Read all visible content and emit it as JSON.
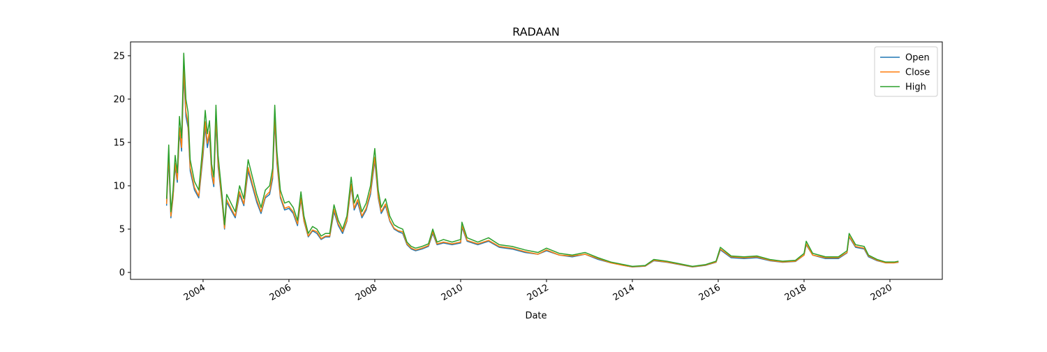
{
  "chart_data": {
    "type": "line",
    "title": "RADAAN",
    "xlabel": "Date",
    "x": [
      2003.15,
      2003.2,
      2003.25,
      2003.3,
      2003.35,
      2003.4,
      2003.45,
      2003.5,
      2003.55,
      2003.6,
      2003.65,
      2003.7,
      2003.8,
      2003.9,
      2004.0,
      2004.05,
      2004.1,
      2004.15,
      2004.2,
      2004.25,
      2004.3,
      2004.35,
      2004.45,
      2004.5,
      2004.55,
      2004.65,
      2004.75,
      2004.85,
      2004.95,
      2005.05,
      2005.15,
      2005.25,
      2005.35,
      2005.45,
      2005.55,
      2005.62,
      2005.67,
      2005.72,
      2005.8,
      2005.9,
      2006.0,
      2006.1,
      2006.2,
      2006.28,
      2006.35,
      2006.45,
      2006.55,
      2006.65,
      2006.75,
      2006.85,
      2006.95,
      2007.05,
      2007.15,
      2007.25,
      2007.35,
      2007.45,
      2007.52,
      2007.6,
      2007.7,
      2007.8,
      2007.9,
      2008.0,
      2008.08,
      2008.15,
      2008.25,
      2008.35,
      2008.45,
      2008.55,
      2008.65,
      2008.75,
      2008.85,
      2008.95,
      2009.1,
      2009.25,
      2009.35,
      2009.45,
      2009.6,
      2009.8,
      2010.0,
      2010.03,
      2010.15,
      2010.4,
      2010.65,
      2010.9,
      2011.2,
      2011.5,
      2011.8,
      2012.0,
      2012.3,
      2012.6,
      2012.9,
      2013.2,
      2013.5,
      2013.8,
      2014.0,
      2014.3,
      2014.5,
      2014.8,
      2015.1,
      2015.4,
      2015.7,
      2015.95,
      2016.05,
      2016.3,
      2016.6,
      2016.9,
      2017.2,
      2017.5,
      2017.8,
      2018.0,
      2018.05,
      2018.2,
      2018.5,
      2018.8,
      2019.0,
      2019.05,
      2019.2,
      2019.4,
      2019.5,
      2019.7,
      2019.9,
      2020.1,
      2020.2
    ],
    "series": [
      {
        "name": "Open",
        "color": "#1f77b4",
        "values": [
          7.7,
          13.2,
          6.3,
          8.6,
          12.2,
          10.4,
          16.2,
          14.0,
          22.8,
          18.0,
          16.7,
          11.7,
          9.5,
          8.6,
          13.5,
          16.8,
          14.4,
          15.8,
          11.3,
          9.9,
          17.4,
          12.2,
          7.7,
          5.0,
          8.1,
          7.2,
          6.3,
          9.0,
          7.7,
          11.7,
          9.9,
          8.1,
          6.8,
          8.6,
          9.0,
          10.8,
          17.4,
          12.6,
          8.6,
          7.2,
          7.4,
          6.8,
          5.4,
          8.4,
          5.9,
          4.1,
          4.8,
          4.5,
          3.8,
          4.1,
          4.1,
          7.0,
          5.4,
          4.5,
          5.9,
          9.9,
          7.2,
          8.1,
          6.3,
          7.2,
          9.0,
          12.9,
          8.6,
          6.8,
          7.7,
          5.9,
          5.0,
          4.7,
          4.5,
          3.2,
          2.7,
          2.5,
          2.7,
          3.0,
          4.5,
          3.2,
          3.4,
          3.2,
          3.4,
          5.2,
          3.6,
          3.2,
          3.6,
          2.9,
          2.7,
          2.3,
          2.1,
          2.5,
          2.0,
          1.8,
          2.1,
          1.5,
          1.1,
          0.8,
          0.63,
          0.72,
          1.35,
          1.17,
          0.9,
          0.63,
          0.81,
          1.17,
          2.6,
          1.7,
          1.6,
          1.7,
          1.35,
          1.17,
          1.26,
          2.0,
          3.2,
          2.0,
          1.6,
          1.6,
          2.25,
          4.1,
          2.9,
          2.7,
          1.8,
          1.35,
          1.1,
          1.1,
          1.17
        ]
      },
      {
        "name": "Close",
        "color": "#ff7f0e",
        "values": [
          7.9,
          13.7,
          6.5,
          8.8,
          12.6,
          10.7,
          16.7,
          14.4,
          23.5,
          18.6,
          17.2,
          12.1,
          9.8,
          8.8,
          14.0,
          17.4,
          14.9,
          16.3,
          11.6,
          10.2,
          17.9,
          12.6,
          7.9,
          5.1,
          8.4,
          7.4,
          6.5,
          9.3,
          7.9,
          12.1,
          10.2,
          8.4,
          7.0,
          8.8,
          9.3,
          11.2,
          17.9,
          13.0,
          8.8,
          7.4,
          7.6,
          7.0,
          5.6,
          8.6,
          6.0,
          4.2,
          4.9,
          4.7,
          3.9,
          4.2,
          4.2,
          7.3,
          5.6,
          4.7,
          6.0,
          10.2,
          7.4,
          8.4,
          6.5,
          7.4,
          9.3,
          13.3,
          8.8,
          7.0,
          7.9,
          6.0,
          5.1,
          4.8,
          4.7,
          3.3,
          2.8,
          2.6,
          2.8,
          3.1,
          4.7,
          3.3,
          3.5,
          3.3,
          3.5,
          5.4,
          3.7,
          3.3,
          3.7,
          3.0,
          2.8,
          2.4,
          2.1,
          2.6,
          2.0,
          1.9,
          2.1,
          1.6,
          1.1,
          0.8,
          0.65,
          0.74,
          1.4,
          1.2,
          0.93,
          0.65,
          0.84,
          1.2,
          2.7,
          1.8,
          1.7,
          1.8,
          1.4,
          1.2,
          1.3,
          2.0,
          3.3,
          2.0,
          1.7,
          1.7,
          2.3,
          4.2,
          3.0,
          2.8,
          1.9,
          1.4,
          1.1,
          1.1,
          1.2
        ]
      },
      {
        "name": "High",
        "color": "#2ca02c",
        "values": [
          8.5,
          14.7,
          7.0,
          9.5,
          13.5,
          11.5,
          18.0,
          15.5,
          25.3,
          20.0,
          18.5,
          13.0,
          10.5,
          9.5,
          15.0,
          18.7,
          16.0,
          17.5,
          12.5,
          11.0,
          19.3,
          13.5,
          8.5,
          5.5,
          9.0,
          8.0,
          7.0,
          10.0,
          8.5,
          13.0,
          11.0,
          9.0,
          7.5,
          9.5,
          10.0,
          12.0,
          19.3,
          14.0,
          9.5,
          8.0,
          8.2,
          7.5,
          6.0,
          9.3,
          6.5,
          4.5,
          5.3,
          5.0,
          4.2,
          4.5,
          4.5,
          7.8,
          6.0,
          5.0,
          6.5,
          11.0,
          8.0,
          9.0,
          7.0,
          8.0,
          10.0,
          14.3,
          9.5,
          7.5,
          8.5,
          6.5,
          5.5,
          5.2,
          5.0,
          3.5,
          3.0,
          2.8,
          3.0,
          3.3,
          5.0,
          3.5,
          3.8,
          3.5,
          3.8,
          5.8,
          4.0,
          3.5,
          4.0,
          3.2,
          3.0,
          2.6,
          2.3,
          2.8,
          2.2,
          2.0,
          2.3,
          1.7,
          1.2,
          0.9,
          0.7,
          0.8,
          1.5,
          1.3,
          1.0,
          0.7,
          0.9,
          1.3,
          2.9,
          1.9,
          1.8,
          1.9,
          1.5,
          1.3,
          1.4,
          2.2,
          3.6,
          2.2,
          1.8,
          1.8,
          2.5,
          4.5,
          3.2,
          3.0,
          2.0,
          1.5,
          1.2,
          1.2,
          1.3
        ]
      }
    ],
    "xlim": [
      2002.31,
      2021.22
    ],
    "xticks": [
      2004,
      2006,
      2008,
      2010,
      2012,
      2014,
      2016,
      2018,
      2020
    ],
    "ylim": [
      -0.8,
      26.6
    ],
    "yticks": [
      0,
      5,
      10,
      15,
      20,
      25
    ],
    "legend": "upper right"
  }
}
